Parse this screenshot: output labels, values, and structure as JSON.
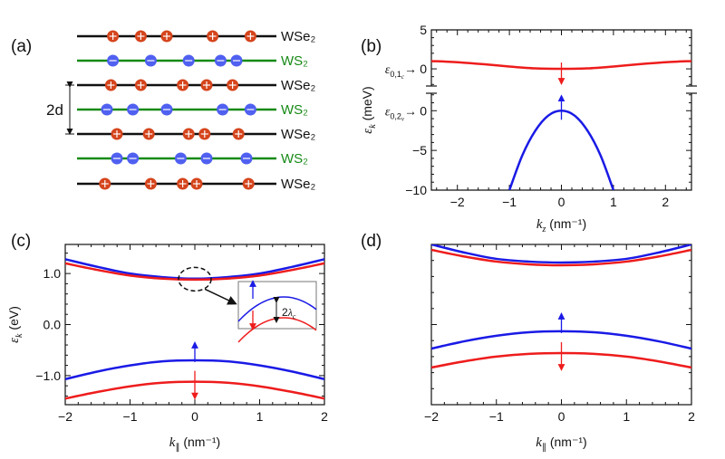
{
  "panel_labels": {
    "a": "(a)",
    "b": "(b)",
    "c": "(c)",
    "d": "(d)"
  },
  "colors": {
    "red": "#ee1c1c",
    "blue": "#1a1ae6",
    "green": "#168a16",
    "black": "#111111",
    "hole": "#d5451d",
    "electron": "#5060f0"
  },
  "chart_data": [
    {
      "panel": "a",
      "type": "diagram",
      "spacing_label": "2d",
      "layers": [
        {
          "label": "WSe₂",
          "material": "WSe2",
          "carrier": "hole",
          "symbol": "+",
          "positions": [
            0.18,
            0.32,
            0.45,
            0.68,
            0.87
          ]
        },
        {
          "label": "WS₂",
          "material": "WS2",
          "carrier": "electron",
          "symbol": "−",
          "positions": [
            0.18,
            0.37,
            0.56,
            0.72,
            0.8
          ]
        },
        {
          "label": "WSe₂",
          "material": "WSe2",
          "carrier": "hole",
          "symbol": "+",
          "positions": [
            0.17,
            0.32,
            0.53,
            0.65,
            0.78
          ]
        },
        {
          "label": "WS₂",
          "material": "WS2",
          "carrier": "electron",
          "symbol": "−",
          "positions": [
            0.15,
            0.28,
            0.45,
            0.73,
            0.87
          ]
        },
        {
          "label": "WSe₂",
          "material": "WSe2",
          "carrier": "hole",
          "symbol": "+",
          "positions": [
            0.2,
            0.36,
            0.56,
            0.64,
            0.81
          ]
        },
        {
          "label": "WS₂",
          "material": "WS2",
          "carrier": "electron",
          "symbol": "−",
          "positions": [
            0.2,
            0.28,
            0.52,
            0.65,
            0.85
          ]
        },
        {
          "label": "WSe₂",
          "material": "WSe2",
          "carrier": "hole",
          "symbol": "+",
          "positions": [
            0.14,
            0.37,
            0.53,
            0.6,
            0.86
          ]
        }
      ]
    },
    {
      "panel": "b",
      "type": "line",
      "broken_axis": true,
      "xlabel": {
        "sym": "k",
        "sub": "z",
        "unit": " (nm⁻¹)"
      },
      "ylabel": {
        "sym": "ε",
        "sub": "k",
        "unit": " (meV)"
      },
      "xlim": [
        -2.5,
        2.5
      ],
      "xticks": [
        -2,
        -1,
        0,
        1,
        2
      ],
      "xtick_labels": [
        "−2",
        "−1",
        "0",
        "1",
        "2"
      ],
      "upper": {
        "ylim": [
          -2.2,
          5
        ],
        "yticks": [
          5,
          0
        ],
        "ytick_labels": [
          "5",
          "0"
        ],
        "ref_label": {
          "sym": "ε",
          "sub": "0,1",
          "subsub": "c",
          "text": "→"
        },
        "series": [
          {
            "color": "red",
            "spin": "down",
            "x": [
              -2.5,
              -2,
              -1.5,
              -1,
              -0.5,
              0,
              0.5,
              1,
              1.5,
              2,
              2.5
            ],
            "y": [
              1.0,
              0.85,
              0.6,
              0.3,
              0.06,
              0,
              0.06,
              0.3,
              0.6,
              0.85,
              1.0
            ]
          }
        ]
      },
      "lower": {
        "ylim": [
          -10,
          2.2
        ],
        "yticks": [
          0,
          -5,
          -10
        ],
        "ytick_labels": [
          "0",
          "−5",
          "−10"
        ],
        "ref_label": {
          "sym": "ε",
          "sub": "0,2",
          "subsub": "v",
          "text": "→"
        },
        "series": [
          {
            "color": "blue",
            "spin": "up",
            "x": [
              -1,
              -0.75,
              -0.5,
              -0.25,
              0,
              0.25,
              0.5,
              0.75,
              1
            ],
            "y": [
              -10,
              -5.6,
              -2.5,
              -0.6,
              0,
              -0.6,
              -2.5,
              -5.6,
              -10
            ]
          }
        ]
      }
    },
    {
      "panel": "c",
      "type": "line",
      "xlabel": {
        "sym": "k",
        "sub": "∥",
        "unit": " (nm⁻¹)"
      },
      "ylabel": {
        "sym": "ε",
        "sub": "k",
        "unit": " (eV)"
      },
      "xlim": [
        -2,
        2
      ],
      "ylim": [
        -1.57,
        1.57
      ],
      "xticks": [
        -2,
        -1,
        0,
        1,
        2
      ],
      "xtick_labels": [
        "−2",
        "−1",
        "0",
        "1",
        "2"
      ],
      "yticks": [
        1,
        0,
        -1
      ],
      "ytick_labels": [
        "1.0",
        "0.0",
        "−1.0"
      ],
      "inset_label": {
        "text": "2",
        "sym": "λ",
        "sub": "c"
      },
      "series": [
        {
          "color": "blue",
          "spin": "up",
          "x": [
            -2,
            -1.5,
            -1,
            -0.5,
            0,
            0.5,
            1,
            1.5,
            2
          ],
          "y": [
            1.28,
            1.13,
            1.0,
            0.93,
            0.9,
            0.93,
            1.0,
            1.13,
            1.28
          ]
        },
        {
          "color": "red",
          "spin": "down",
          "x": [
            -2,
            -1.5,
            -1,
            -0.5,
            0,
            0.5,
            1,
            1.5,
            2
          ],
          "y": [
            1.2,
            1.07,
            0.96,
            0.9,
            0.88,
            0.9,
            0.96,
            1.07,
            1.2
          ]
        },
        {
          "color": "blue",
          "spin": "up",
          "x": [
            -2,
            -1.5,
            -1,
            -0.5,
            0,
            0.5,
            1,
            1.5,
            2
          ],
          "y": [
            -1.07,
            -0.92,
            -0.8,
            -0.72,
            -0.7,
            -0.72,
            -0.8,
            -0.92,
            -1.07
          ]
        },
        {
          "color": "red",
          "spin": "down",
          "x": [
            -2,
            -1.5,
            -1,
            -0.5,
            0,
            0.5,
            1,
            1.5,
            2
          ],
          "y": [
            -1.45,
            -1.32,
            -1.21,
            -1.14,
            -1.12,
            -1.14,
            -1.21,
            -1.32,
            -1.45
          ]
        }
      ]
    },
    {
      "panel": "d",
      "type": "line",
      "xlabel": {
        "sym": "k",
        "sub": "∥",
        "unit": " (nm⁻¹)"
      },
      "xlim": [
        -2,
        2
      ],
      "ylim": [
        0,
        1
      ],
      "xticks": [
        -2,
        -1,
        0,
        1,
        2
      ],
      "xtick_labels": [
        "−2",
        "−1",
        "0",
        "1",
        "2"
      ],
      "yticks": [],
      "series": [
        {
          "color": "blue",
          "spin": "up",
          "x": [
            -2,
            -1.5,
            -1,
            -0.5,
            0,
            0.5,
            1,
            1.5,
            2
          ],
          "y": [
            1.0,
            0.95,
            0.91,
            0.893,
            0.887,
            0.893,
            0.91,
            0.95,
            1.0
          ]
        },
        {
          "color": "red",
          "spin": "down",
          "x": [
            -2,
            -1.5,
            -1,
            -0.5,
            0,
            0.5,
            1,
            1.5,
            2
          ],
          "y": [
            0.966,
            0.925,
            0.893,
            0.876,
            0.87,
            0.876,
            0.893,
            0.925,
            0.966
          ]
        },
        {
          "color": "blue",
          "spin": "up",
          "x": [
            -2,
            -1.5,
            -1,
            -0.5,
            0,
            0.5,
            1,
            1.5,
            2
          ],
          "y": [
            0.35,
            0.395,
            0.43,
            0.452,
            0.458,
            0.452,
            0.43,
            0.395,
            0.35
          ]
        },
        {
          "color": "red",
          "spin": "down",
          "x": [
            -2,
            -1.5,
            -1,
            -0.5,
            0,
            0.5,
            1,
            1.5,
            2
          ],
          "y": [
            0.232,
            0.27,
            0.3,
            0.317,
            0.322,
            0.317,
            0.3,
            0.27,
            0.232
          ]
        }
      ]
    }
  ]
}
